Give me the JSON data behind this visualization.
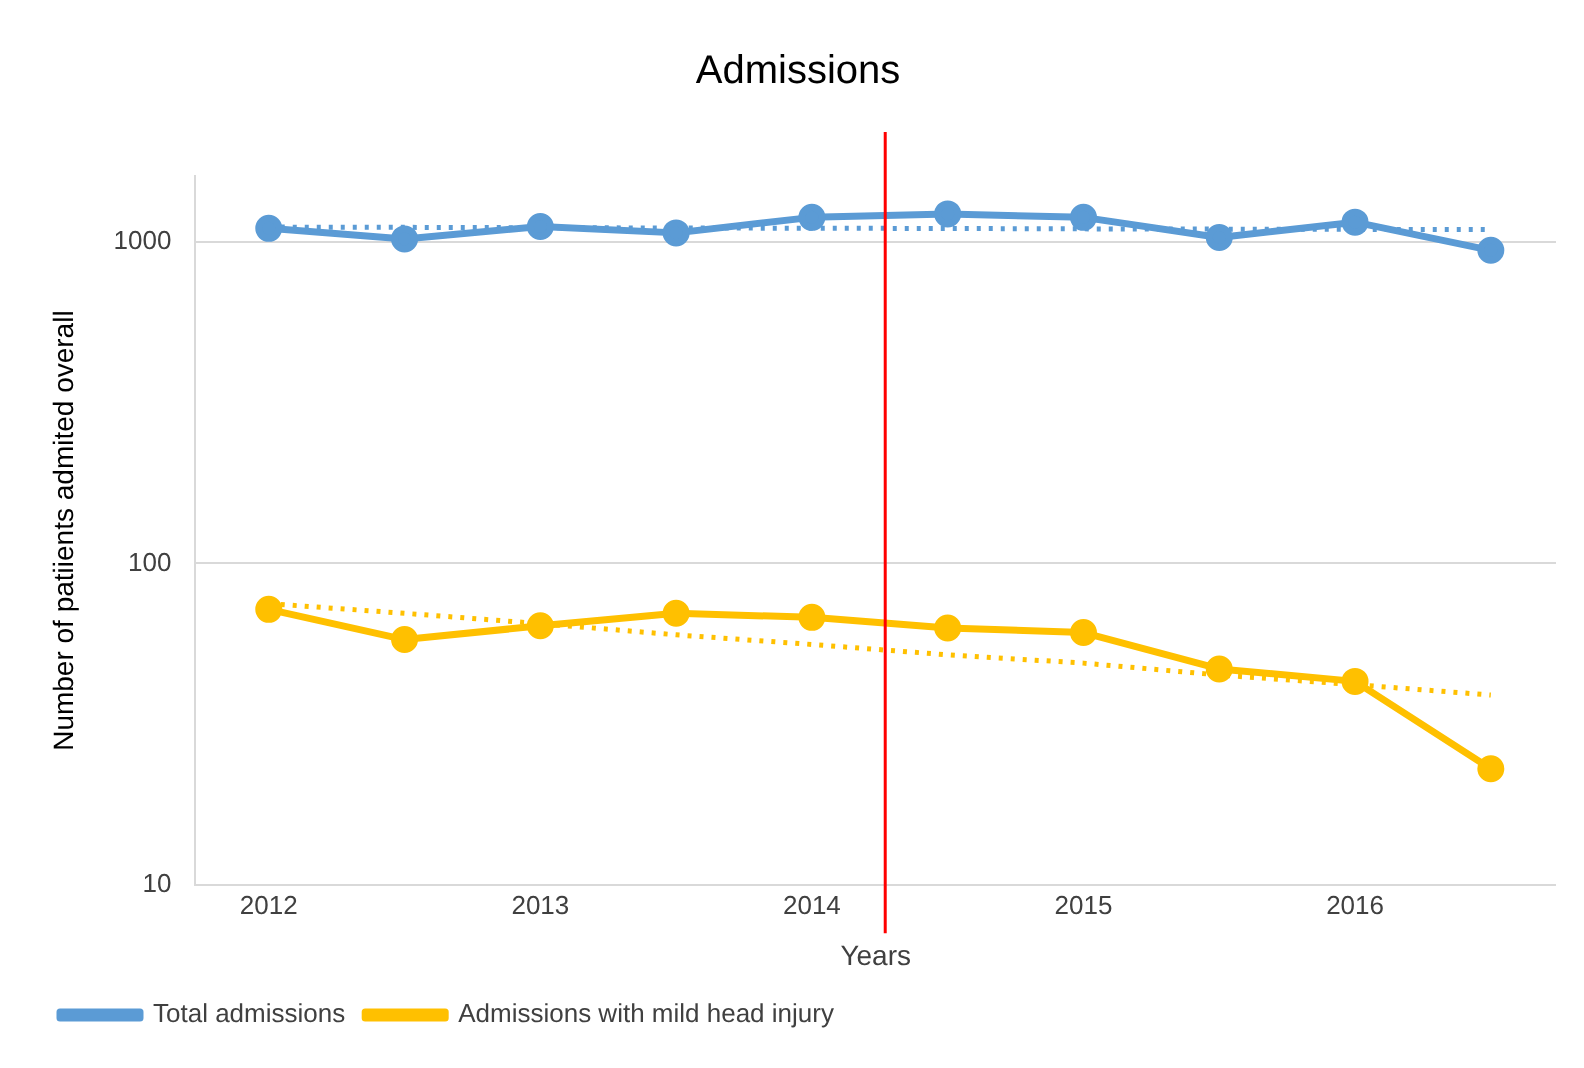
{
  "chart_data": {
    "type": "line",
    "title": "Admissions",
    "xlabel": "Years",
    "ylabel": "Number of patiients admited overall",
    "x": [
      2012,
      2012.5,
      2013,
      2013.5,
      2014,
      2014.5,
      2015,
      2015.5,
      2016,
      2016.5
    ],
    "series": [
      {
        "name": "Total admissions",
        "color": "#5b9bd5",
        "values": [
          1100,
          1020,
          1115,
          1065,
          1190,
          1220,
          1190,
          1030,
          1150,
          940
        ]
      },
      {
        "name": "Admissions with mild head injury",
        "color": "#ffc000",
        "values": [
          72,
          58,
          64,
          70,
          68,
          63,
          61,
          47,
          43,
          23
        ]
      },
      {
        "color": "#5b9bd5",
        "values": [
          1110,
          1108,
          1105,
          1103,
          1101,
          1099,
          1096,
          1094,
          1092,
          1090
        ],
        "line_style": "dotted",
        "marker": "none"
      },
      {
        "color": "#ffc000",
        "values": [
          75,
          70,
          65,
          60,
          56,
          52,
          49,
          45,
          42,
          39
        ],
        "line_style": "dotted",
        "marker": "none"
      }
    ],
    "xlim": [
      2011.73,
      2016.74
    ],
    "xticks": [
      2012,
      2013,
      2014,
      2015,
      2016
    ],
    "ylim": [
      10,
      1600
    ],
    "yticks": [
      10,
      100,
      1000
    ],
    "log": "y",
    "grid": "y",
    "legend": "bottom left",
    "marker": "circle",
    "line_style": "solid",
    "ref_lines": [
      {
        "axis": "x",
        "value": 2014.27,
        "color": "#ff0000"
      }
    ]
  }
}
